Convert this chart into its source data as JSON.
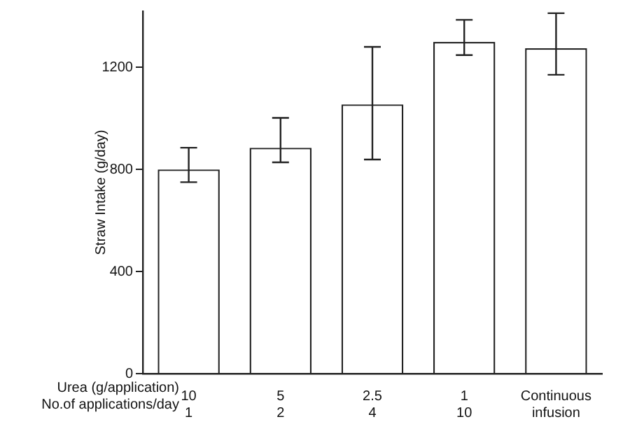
{
  "chart_data": {
    "type": "bar",
    "ylabel": "Straw Intake (g/day)",
    "categories": [
      "10\n1",
      "5\n2",
      "2.5\n4",
      "1\n10",
      "Continuous\ninfusion"
    ],
    "annotations": [
      "Urea (g/application)",
      "No.of applications/day"
    ],
    "values": [
      800,
      885,
      1055,
      1300,
      1275
    ],
    "errors": [
      [
        750,
        885
      ],
      [
        828,
        1002
      ],
      [
        839,
        1280
      ],
      [
        1248,
        1386
      ],
      [
        1171,
        1412
      ]
    ],
    "color": "#ffffff",
    "ylim": [
      0,
      1420
    ],
    "yticks": [
      0,
      400,
      800,
      1200
    ],
    "grid": false,
    "legend": false
  }
}
